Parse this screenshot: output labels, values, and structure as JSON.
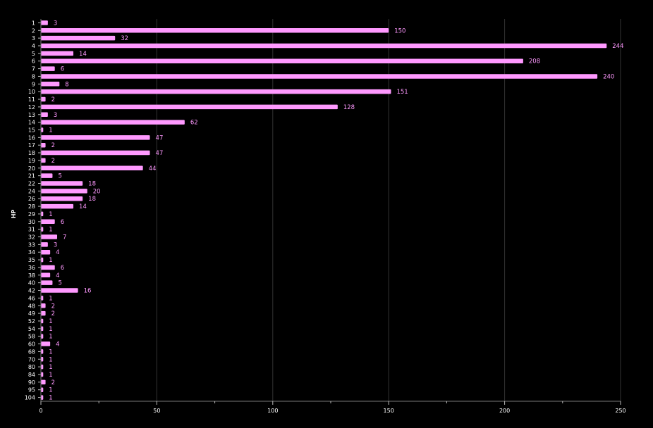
{
  "chart_data": {
    "type": "bar",
    "orientation": "horizontal",
    "ylabel": "HP",
    "xlabel": "",
    "xlim": [
      0,
      250
    ],
    "x_ticks": [
      0,
      50,
      100,
      150,
      200,
      250
    ],
    "grid": true,
    "legend": "none",
    "bar_color": "#ff99ff",
    "label_color": "#ff99ff",
    "categories": [
      "1",
      "2",
      "3",
      "4",
      "5",
      "6",
      "7",
      "8",
      "9",
      "10",
      "11",
      "12",
      "13",
      "14",
      "15",
      "16",
      "17",
      "18",
      "19",
      "20",
      "21",
      "22",
      "24",
      "26",
      "28",
      "29",
      "30",
      "31",
      "32",
      "33",
      "34",
      "35",
      "36",
      "38",
      "40",
      "42",
      "46",
      "48",
      "49",
      "52",
      "54",
      "58",
      "60",
      "68",
      "70",
      "80",
      "84",
      "90",
      "95",
      "104"
    ],
    "values": [
      3,
      150,
      32,
      244,
      14,
      208,
      6,
      240,
      8,
      151,
      2,
      128,
      3,
      62,
      1,
      47,
      2,
      47,
      2,
      44,
      5,
      18,
      20,
      18,
      14,
      1,
      6,
      1,
      7,
      3,
      4,
      1,
      6,
      4,
      5,
      16,
      1,
      2,
      2,
      1,
      1,
      1,
      4,
      1,
      1,
      1,
      1,
      2,
      1,
      1
    ]
  }
}
